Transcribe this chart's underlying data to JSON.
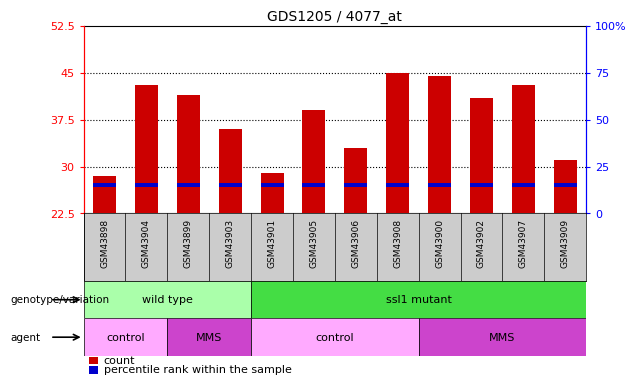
{
  "title": "GDS1205 / 4077_at",
  "samples": [
    "GSM43898",
    "GSM43904",
    "GSM43899",
    "GSM43903",
    "GSM43901",
    "GSM43905",
    "GSM43906",
    "GSM43908",
    "GSM43900",
    "GSM43902",
    "GSM43907",
    "GSM43909"
  ],
  "counts": [
    28.5,
    43.0,
    41.5,
    36.0,
    29.0,
    39.0,
    33.0,
    45.0,
    44.5,
    41.0,
    43.0,
    31.0
  ],
  "percentile_vals": [
    15,
    15,
    15,
    15,
    15,
    15,
    15,
    15,
    15,
    15,
    15,
    15
  ],
  "y_min": 22.5,
  "y_max": 52.5,
  "y_ticks_left": [
    22.5,
    30,
    37.5,
    45,
    52.5
  ],
  "y_ticks_right": [
    0,
    25,
    50,
    75,
    100
  ],
  "bar_color": "#cc0000",
  "marker_color": "#0000cc",
  "background_color": "#ffffff",
  "tick_bg": "#cccccc",
  "genotype_groups": [
    {
      "label": "wild type",
      "start": 0,
      "end": 3,
      "color": "#aaffaa"
    },
    {
      "label": "ssl1 mutant",
      "start": 4,
      "end": 11,
      "color": "#44dd44"
    }
  ],
  "agent_groups": [
    {
      "label": "control",
      "start": 0,
      "end": 1,
      "color": "#ffaaff"
    },
    {
      "label": "MMS",
      "start": 2,
      "end": 3,
      "color": "#cc44cc"
    },
    {
      "label": "control",
      "start": 4,
      "end": 7,
      "color": "#ffaaff"
    },
    {
      "label": "MMS",
      "start": 8,
      "end": 11,
      "color": "#cc44cc"
    }
  ],
  "legend_count_label": "count",
  "legend_percentile_label": "percentile rank within the sample",
  "genotype_label": "genotype/variation",
  "agent_label": "agent",
  "bar_width": 0.55
}
